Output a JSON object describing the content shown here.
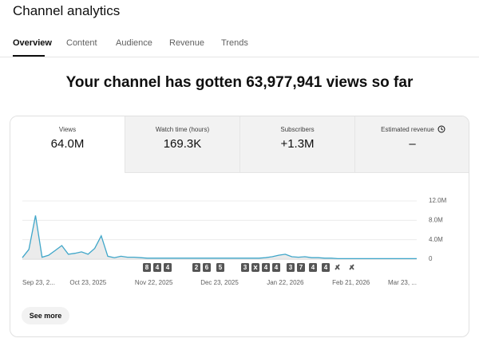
{
  "header": {
    "title": "Channel analytics"
  },
  "tabs": [
    "Overview",
    "Content",
    "Audience",
    "Revenue",
    "Trends"
  ],
  "headline": "Your channel has gotten 63,977,941 views so far",
  "metrics": [
    {
      "label": "Views",
      "value": "64.0M"
    },
    {
      "label": "Watch time (hours)",
      "value": "169.3K"
    },
    {
      "label": "Subscribers",
      "value": "+1.3M"
    },
    {
      "label": "Estimated revenue",
      "value": "–"
    }
  ],
  "chart_data": {
    "type": "line",
    "color": "#3fa6c9",
    "categories": [
      "Sep 23, 2...",
      null,
      null,
      null,
      null,
      null,
      null,
      null,
      null,
      null,
      "Oct 23, 2025",
      null,
      null,
      null,
      null,
      null,
      null,
      null,
      null,
      null,
      "Nov 22, 2025",
      null,
      null,
      null,
      null,
      null,
      null,
      null,
      null,
      null,
      "Dec 23, 2025",
      null,
      null,
      null,
      null,
      null,
      null,
      null,
      null,
      null,
      "Jan 22, 2026",
      null,
      null,
      null,
      null,
      null,
      null,
      null,
      null,
      null,
      "Feb 21, 2026",
      null,
      null,
      null,
      null,
      null,
      null,
      null,
      null,
      null,
      "Mar 23, ..."
    ],
    "values": [
      300000,
      2000000,
      9000000,
      400000,
      800000,
      1800000,
      2800000,
      1000000,
      1200000,
      1500000,
      1000000,
      2200000,
      4800000,
      600000,
      300000,
      600000,
      400000,
      400000,
      300000,
      200000,
      200000,
      200000,
      200000,
      200000,
      200000,
      200000,
      200000,
      200000,
      200000,
      200000,
      200000,
      200000,
      200000,
      200000,
      200000,
      200000,
      200000,
      300000,
      500000,
      800000,
      1000000,
      500000,
      400000,
      500000,
      300000,
      300000,
      200000,
      200000,
      100000,
      100000,
      100000,
      100000,
      100000,
      100000,
      100000,
      100000,
      100000,
      100000,
      100000,
      100000,
      100000
    ],
    "ylim": [
      0,
      12000000
    ],
    "yticks": [
      0,
      {
        "value": 4000000,
        "label": "4.0M"
      },
      {
        "value": 8000000,
        "label": "8.0M"
      },
      {
        "value": 12000000,
        "label": "12.0M"
      }
    ],
    "grid": true,
    "markers": [
      "8",
      "4",
      "4",
      "2",
      "6",
      "5",
      "3",
      "4",
      "4",
      "3",
      "7",
      "4",
      "4"
    ]
  },
  "button": "See more"
}
